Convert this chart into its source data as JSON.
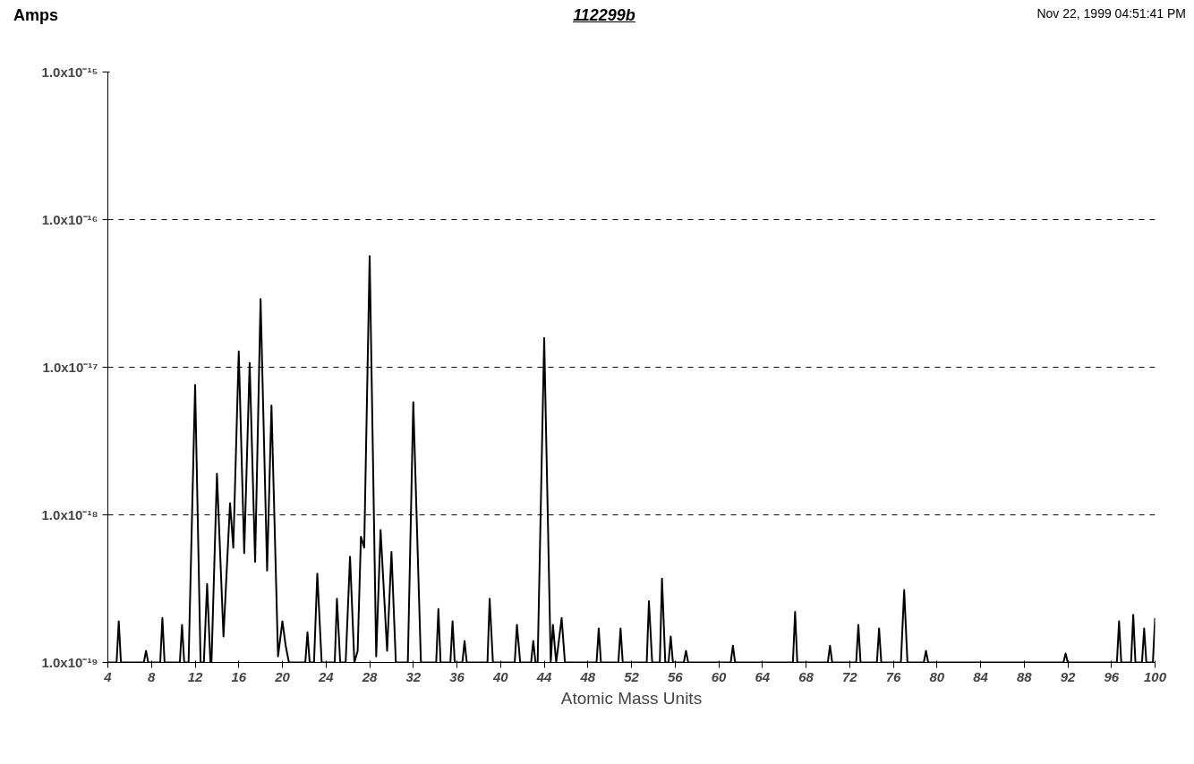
{
  "chart_data": {
    "type": "line",
    "title": "112299b",
    "xlabel": "Atomic Mass Units",
    "ylabel": "Amps",
    "annotations": [
      "Nov 22, 1999  04:51:41 PM"
    ],
    "log": "y",
    "grid": "y",
    "marker": "none",
    "line_style": "solid",
    "xlim": [
      4,
      100
    ],
    "xticks": [
      4,
      8,
      12,
      16,
      20,
      24,
      28,
      32,
      36,
      40,
      44,
      48,
      52,
      56,
      60,
      64,
      68,
      72,
      76,
      80,
      84,
      88,
      92,
      96,
      100
    ],
    "ylim": [
      1e-19,
      1e-15
    ],
    "yticks": [
      {
        "value": 1e-19,
        "label": "1.0x10⁻¹⁹"
      },
      {
        "value": 1e-18,
        "label": "1.0x10⁻¹⁸"
      },
      {
        "value": 1e-17,
        "label": "1.0x10⁻¹⁷"
      },
      {
        "value": 1e-16,
        "label": "1.0x10⁻¹⁶"
      },
      {
        "value": 1e-15,
        "label": "1.0x10⁻¹⁵"
      }
    ],
    "series": [
      {
        "color": "#000000",
        "x": [
          4.0,
          4.8,
          5.0,
          5.2,
          7.3,
          7.5,
          7.7,
          8.8,
          9.0,
          9.2,
          10.6,
          10.8,
          11.0,
          11.4,
          12.0,
          12.5,
          12.8,
          13.1,
          13.4,
          13.5,
          14.0,
          14.6,
          15.2,
          15.5,
          16.0,
          16.5,
          17.0,
          17.5,
          18.0,
          18.6,
          19.0,
          19.6,
          20.0,
          20.3,
          20.6,
          22.1,
          22.3,
          22.5,
          22.9,
          23.2,
          23.6,
          24.8,
          25.0,
          25.3,
          25.8,
          26.2,
          26.6,
          26.9,
          27.2,
          27.5,
          28.0,
          28.6,
          29.0,
          29.6,
          30.0,
          30.4,
          31.5,
          32.0,
          32.7,
          34.1,
          34.3,
          34.5,
          35.4,
          35.6,
          35.8,
          36.5,
          36.7,
          36.9,
          38.8,
          39.0,
          39.3,
          41.3,
          41.5,
          41.8,
          42.8,
          43.0,
          43.2,
          43.4,
          44.0,
          44.6,
          44.8,
          45.1,
          45.6,
          45.9,
          48.8,
          49.0,
          49.2,
          50.8,
          51.0,
          51.2,
          53.4,
          53.6,
          53.9,
          54.6,
          54.8,
          55.1,
          55.4,
          55.6,
          55.8,
          56.8,
          57.0,
          57.2,
          61.1,
          61.3,
          61.5,
          66.8,
          67.0,
          67.2,
          70.0,
          70.2,
          70.4,
          72.6,
          72.8,
          73.0,
          74.5,
          74.7,
          74.9,
          76.7,
          77.0,
          77.3,
          78.8,
          79.0,
          79.2,
          91.6,
          91.8,
          92.0,
          96.5,
          96.7,
          96.9,
          97.8,
          98.0,
          98.2,
          98.8,
          99.0,
          99.2,
          99.8,
          100.0
        ],
        "values": [
          1e-19,
          1e-19,
          1.9e-19,
          1e-19,
          1e-19,
          1.2e-19,
          1e-19,
          1e-19,
          2e-19,
          1e-19,
          1e-19,
          1.8e-19,
          1e-19,
          1e-19,
          7.6e-18,
          1e-19,
          1e-19,
          3.4e-19,
          1e-19,
          1e-19,
          1.9e-18,
          1.5e-19,
          1.2e-18,
          6e-19,
          1.28e-17,
          5.5e-19,
          1.07e-17,
          4.8e-19,
          2.9e-17,
          4.2e-19,
          5.5e-18,
          1.1e-19,
          1.9e-19,
          1.3e-19,
          1e-19,
          1e-19,
          1.6e-19,
          1e-19,
          1e-19,
          4e-19,
          1e-19,
          1e-19,
          2.7e-19,
          1e-19,
          1e-19,
          5.2e-19,
          1e-19,
          1.2e-19,
          7.1e-19,
          6e-19,
          5.66e-17,
          1.1e-19,
          7.9e-19,
          1.2e-19,
          5.6e-19,
          1e-19,
          1e-19,
          5.8e-18,
          1e-19,
          1e-19,
          2.3e-19,
          1e-19,
          1e-19,
          1.9e-19,
          1e-19,
          1e-19,
          1.4e-19,
          1e-19,
          1e-19,
          2.7e-19,
          1e-19,
          1e-19,
          1.8e-19,
          1e-19,
          1e-19,
          1.4e-19,
          1e-19,
          1e-19,
          1.58e-17,
          1e-19,
          1.8e-19,
          1e-19,
          2e-19,
          1e-19,
          1e-19,
          1.7e-19,
          1e-19,
          1e-19,
          1.7e-19,
          1e-19,
          1e-19,
          2.6e-19,
          1e-19,
          1e-19,
          3.7e-19,
          1e-19,
          1e-19,
          1.5e-19,
          1e-19,
          1e-19,
          1.2e-19,
          1e-19,
          1e-19,
          1.3e-19,
          1e-19,
          1e-19,
          2.2e-19,
          1e-19,
          1e-19,
          1.3e-19,
          1e-19,
          1e-19,
          1.8e-19,
          1e-19,
          1e-19,
          1.7e-19,
          1e-19,
          1e-19,
          3.1e-19,
          1e-19,
          1e-19,
          1.2e-19,
          1e-19,
          1e-19,
          1.15e-19,
          1e-19,
          1e-19,
          1.9e-19,
          1e-19,
          1e-19,
          2.1e-19,
          1e-19,
          1e-19,
          1.7e-19,
          1e-19,
          1e-19,
          2e-19
        ]
      }
    ]
  }
}
